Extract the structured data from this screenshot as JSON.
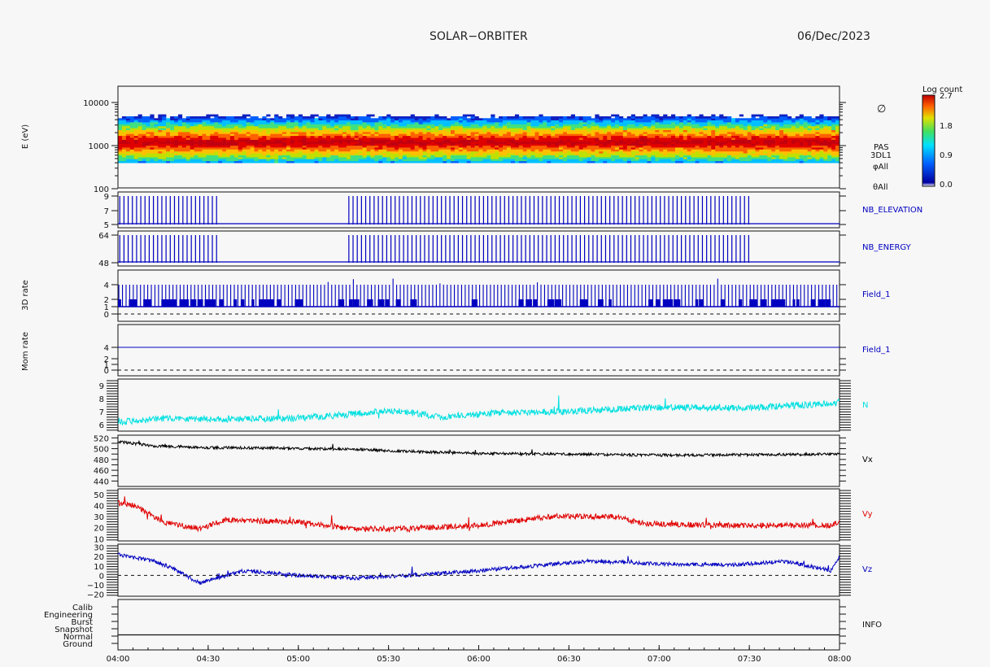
{
  "header": {
    "title": "SOLAR−ORBITER",
    "date": "06/Dec/2023"
  },
  "chart_data": {
    "type": "line",
    "xaxis": {
      "ticks": [
        "04:00",
        "04:30",
        "05:00",
        "05:30",
        "06:00",
        "06:30",
        "07:00",
        "07:30",
        "08:00"
      ],
      "range_hours": [
        4,
        8
      ]
    },
    "panels": [
      {
        "id": "spectrogram",
        "type": "heatmap",
        "ylabel": "E (eV)",
        "log_y": true,
        "ylim": [
          100,
          15000
        ],
        "yticks": [
          "10000",
          "1000",
          "100"
        ],
        "labels": [
          "PAS",
          "3DL1",
          "φAll",
          "θAll"
        ],
        "peak_energy_ev": 1150,
        "colorbar": {
          "title": "Log count",
          "ticks": [
            "2.7",
            "1.8",
            "0.9",
            "0.0"
          ]
        }
      },
      {
        "id": "nb_elevation",
        "type": "bar",
        "label": "NB_ELEVATION",
        "color": "#0000c0",
        "yticks": [
          "9",
          "7",
          "5"
        ],
        "ylim": [
          5,
          9
        ],
        "high": 9,
        "low": 5,
        "active_windows_hours": [
          [
            4.0,
            4.55
          ],
          [
            5.27,
            7.52
          ]
        ]
      },
      {
        "id": "nb_energy",
        "type": "bar",
        "label": "NB_ENERGY",
        "color": "#0000c0",
        "yticks": [
          "64",
          "48"
        ],
        "ylim": [
          48,
          64
        ],
        "high": 64,
        "low": 48,
        "active_windows_hours": [
          [
            4.0,
            4.55
          ],
          [
            5.27,
            7.52
          ]
        ]
      },
      {
        "id": "rate_3d",
        "type": "bar",
        "ylabel": "3D rate",
        "label": "Field_1",
        "color": "#0000c0",
        "yticks": [
          "4",
          "2",
          "1",
          "0"
        ],
        "ylim": [
          0,
          5
        ],
        "typical_spike": 4,
        "base": 2
      },
      {
        "id": "mom_rate",
        "type": "line",
        "ylabel": "Mom rate",
        "label": "Field_1",
        "color": "#0000c0",
        "yticks": [
          "4",
          "2",
          "1",
          "0"
        ],
        "ylim": [
          0,
          5.5
        ],
        "value": 4
      },
      {
        "id": "n",
        "type": "line",
        "label": "N",
        "color": "#00e0e0",
        "yticks": [
          "9",
          "8",
          "7",
          "6"
        ],
        "ylim": [
          5.5,
          9.5
        ],
        "x_hours": [
          4.0,
          4.3,
          4.6,
          5.0,
          5.3,
          5.5,
          5.8,
          6.1,
          6.5,
          6.9,
          7.2,
          7.5,
          7.8,
          8.0
        ],
        "values": [
          6.2,
          6.5,
          6.4,
          6.5,
          6.8,
          7.1,
          6.6,
          6.9,
          7.0,
          7.3,
          7.3,
          7.3,
          7.5,
          7.7
        ],
        "noise": 0.25
      },
      {
        "id": "vx",
        "type": "line",
        "label": "Vx",
        "color": "#000000",
        "yticks": [
          "520",
          "500",
          "480",
          "460",
          "440"
        ],
        "ylim": [
          430,
          525
        ],
        "x_hours": [
          4.0,
          4.2,
          4.5,
          4.9,
          5.3,
          5.6,
          6.0,
          6.5,
          6.9,
          7.2,
          7.6,
          8.0
        ],
        "values": [
          513,
          505,
          502,
          501,
          499,
          495,
          491,
          490,
          488,
          488,
          489,
          490
        ],
        "noise": 2.5
      },
      {
        "id": "vy",
        "type": "line",
        "label": "Vy",
        "color": "#e00000",
        "yticks": [
          "50",
          "40",
          "30",
          "20",
          "10"
        ],
        "ylim": [
          8,
          55
        ],
        "x_hours": [
          4.0,
          4.1,
          4.25,
          4.45,
          4.6,
          5.0,
          5.3,
          5.6,
          6.0,
          6.4,
          6.75,
          6.9,
          7.3,
          7.7,
          7.95,
          8.0
        ],
        "values": [
          42,
          40,
          25,
          19,
          27,
          25,
          19,
          19,
          22,
          30,
          30,
          24,
          22,
          22,
          22,
          25
        ],
        "noise": 2.5
      },
      {
        "id": "vz",
        "type": "line",
        "label": "Vz",
        "color": "#0000c0",
        "yticks": [
          "30",
          "20",
          "10",
          "0",
          "−10",
          "−20"
        ],
        "ylim": [
          -22,
          33
        ],
        "x_hours": [
          4.0,
          4.2,
          4.3,
          4.45,
          4.7,
          5.0,
          5.3,
          5.6,
          6.0,
          6.3,
          6.6,
          6.8,
          7.0,
          7.4,
          7.7,
          7.95,
          8.0
        ],
        "values": [
          22,
          15,
          8,
          -8,
          5,
          0,
          -3,
          0,
          5,
          10,
          15,
          14,
          12,
          11,
          15,
          5,
          20
        ],
        "noise": 2.0
      },
      {
        "id": "info",
        "type": "table",
        "label": "INFO",
        "categories": [
          "Calib",
          "Engineering",
          "Burst",
          "Snapshot",
          "Normal",
          "Ground"
        ],
        "active": "Normal"
      }
    ]
  }
}
